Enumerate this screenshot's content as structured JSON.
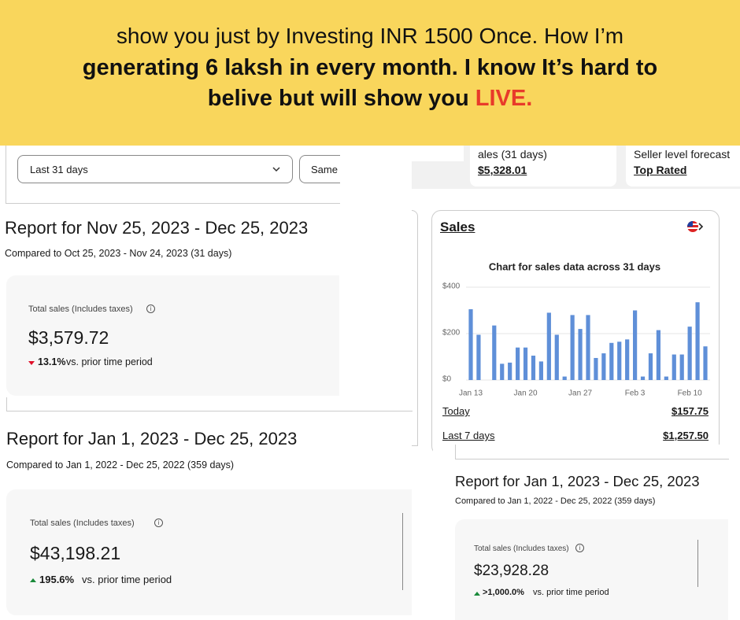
{
  "banner": {
    "line1": "show you just by Investing INR 1500 Once. How I’m",
    "line2": "generating 6 laksh in every month. I know It’s hard to",
    "line3": "belive but will show you",
    "line3_highlight": "LIVE."
  },
  "filters": {
    "period": "Last 31 days",
    "compare": "Same"
  },
  "summary": {
    "sales_label": "ales (31 days)",
    "sales_value": "$5,328.01",
    "seller_label": "Seller level forecast",
    "seller_value": "Top Rated"
  },
  "report1": {
    "title": "Report for Nov 25, 2023 - Dec 25, 2023",
    "compared": "Compared to Oct 25, 2023 - Nov 24, 2023 (31 days)",
    "metric_label": "Total sales (Includes taxes)",
    "metric_value": "$3,579.72",
    "change": "13.1%",
    "change_text": "vs. prior time period"
  },
  "report2": {
    "title": "Report for Jan 1, 2023 - Dec 25, 2023",
    "compared": "Compared to Jan 1, 2022 - Dec 25, 2022 (359 days)",
    "metric_label": "Total sales (Includes taxes)",
    "metric_value": "$43,198.21",
    "change": "195.6%",
    "change_text": "vs. prior time period"
  },
  "report3": {
    "title": "Report for Jan 1, 2023 - Dec 25, 2023",
    "compared": "Compared to Jan 1, 2022 - Dec 25, 2022 (359 days)",
    "metric_label": "Total sales (Includes taxes)",
    "metric_value": "$23,928.28",
    "change": ">1,000.0%",
    "change_text": "vs. prior time period"
  },
  "sales_card": {
    "title": "Sales",
    "rows": [
      {
        "label": "Today",
        "value": "$157.75"
      },
      {
        "label": "Last 7 days",
        "value": "$1,257.50"
      }
    ]
  },
  "chart_data": {
    "type": "bar",
    "title": "Chart for sales data across 31 days",
    "categories": [
      "Jan 13",
      null,
      null,
      null,
      null,
      null,
      null,
      "Jan 20",
      null,
      null,
      null,
      null,
      null,
      null,
      "Jan 27",
      null,
      null,
      null,
      null,
      null,
      null,
      "Feb 3",
      null,
      null,
      null,
      null,
      null,
      null,
      "Feb 10",
      null,
      null
    ],
    "values": [
      305,
      195,
      0,
      235,
      70,
      75,
      140,
      140,
      105,
      80,
      290,
      195,
      15,
      280,
      220,
      280,
      95,
      115,
      160,
      165,
      175,
      300,
      15,
      115,
      215,
      15,
      110,
      110,
      230,
      335,
      145
    ],
    "color": "#5f8fd8",
    "ylim": [
      0,
      400
    ],
    "yticks": [
      {
        "value": 0,
        "label": "$0"
      },
      {
        "value": 200,
        "label": "$200"
      },
      {
        "value": 400,
        "label": "$400"
      }
    ],
    "grid": true
  }
}
